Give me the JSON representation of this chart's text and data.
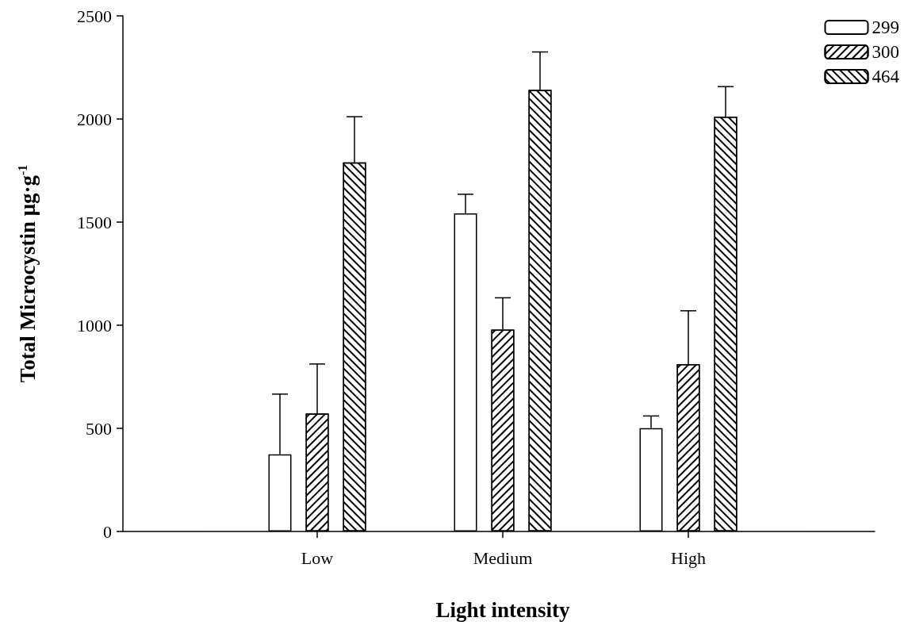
{
  "chart_data": {
    "type": "bar",
    "xlabel": "Light intensity",
    "ylabel": "Total Microcystin μg·g$^{-1}$",
    "categories": [
      "Low",
      "Medium",
      "High"
    ],
    "series": [
      {
        "name": "299",
        "color": "#ffffff",
        "values": [
          374,
          1542,
          501
        ],
        "errors": [
          292,
          93,
          59
        ]
      },
      {
        "name": "300",
        "color": "#ffffff",
        "values": [
          572,
          979,
          812
        ],
        "errors": [
          240,
          154,
          258
        ]
      },
      {
        "name": "464",
        "color": "#ffffff",
        "values": [
          1789,
          2141,
          2012
        ],
        "errors": [
          222,
          184,
          145
        ]
      }
    ],
    "ylim": [
      0,
      2500
    ],
    "yticks": [
      0,
      500,
      1000,
      1500,
      2000,
      2500
    ],
    "grid": false,
    "legend": "top right"
  }
}
